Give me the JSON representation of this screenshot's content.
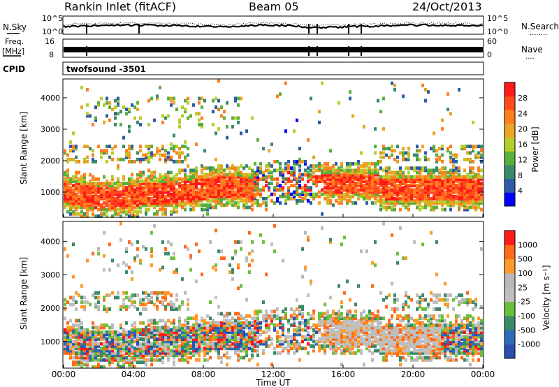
{
  "header": {
    "station": "Rankin Inlet (fitACF)",
    "beam": "Beam 05",
    "date": "24/Oct/2013"
  },
  "nsky_panel": {
    "left_label": "N.Sky",
    "right_label": "N.Search",
    "right_legend": "........",
    "y_ticks": [
      "10^5",
      "10^0"
    ]
  },
  "freq_panel": {
    "left_label": "Freq.",
    "left_units": "[MHz]",
    "left_ticks": [
      "16",
      "8"
    ],
    "right_label": "Nave",
    "right_legend": "....",
    "right_ticks": [
      "60",
      "0"
    ]
  },
  "cpid": {
    "label": "CPID",
    "value": "twofsound -3501"
  },
  "colors": {
    "power": [
      "#0000ff",
      "#2e5aa8",
      "#3a8a6a",
      "#5aaf3c",
      "#b3cf2a",
      "#e9a523",
      "#ff7f1f",
      "#ff4d1a",
      "#ff1a1a"
    ],
    "velocity": [
      "#2a4fb0",
      "#2f6bb8",
      "#3a8a68",
      "#6cbf3a",
      "#bfbfbf",
      "#b8b8b8",
      "#ff9a2a",
      "#ff6a1a",
      "#ff1a1a"
    ]
  },
  "chart_data": [
    {
      "type": "heatmap",
      "name": "power",
      "ylabel": "Slant Range [km]",
      "ylim": [
        200,
        4600
      ],
      "y_ticks": [
        "1000",
        "2000",
        "3000",
        "4000"
      ],
      "colorbar_label": "Power [dB]",
      "colorbar_ticks": [
        "4",
        "8",
        "12",
        "16",
        "20",
        "24",
        "28"
      ],
      "x_range_hours": [
        0,
        24
      ]
    },
    {
      "type": "heatmap",
      "name": "velocity",
      "ylabel": "Slant Range [km]",
      "ylim": [
        200,
        4600
      ],
      "y_ticks": [
        "1000",
        "2000",
        "3000",
        "4000"
      ],
      "colorbar_label": "Velocity [m s⁻¹]",
      "colorbar_ticks": [
        "1000",
        "500",
        "100",
        "25",
        "-25",
        "-100",
        "-500",
        "-1000"
      ],
      "x_range_hours": [
        0,
        24
      ]
    }
  ],
  "x_axis": {
    "label": "Time UT",
    "ticks": [
      "00:00",
      "04:00",
      "08:00",
      "12:00",
      "16:00",
      "20:00",
      "00:00"
    ]
  }
}
